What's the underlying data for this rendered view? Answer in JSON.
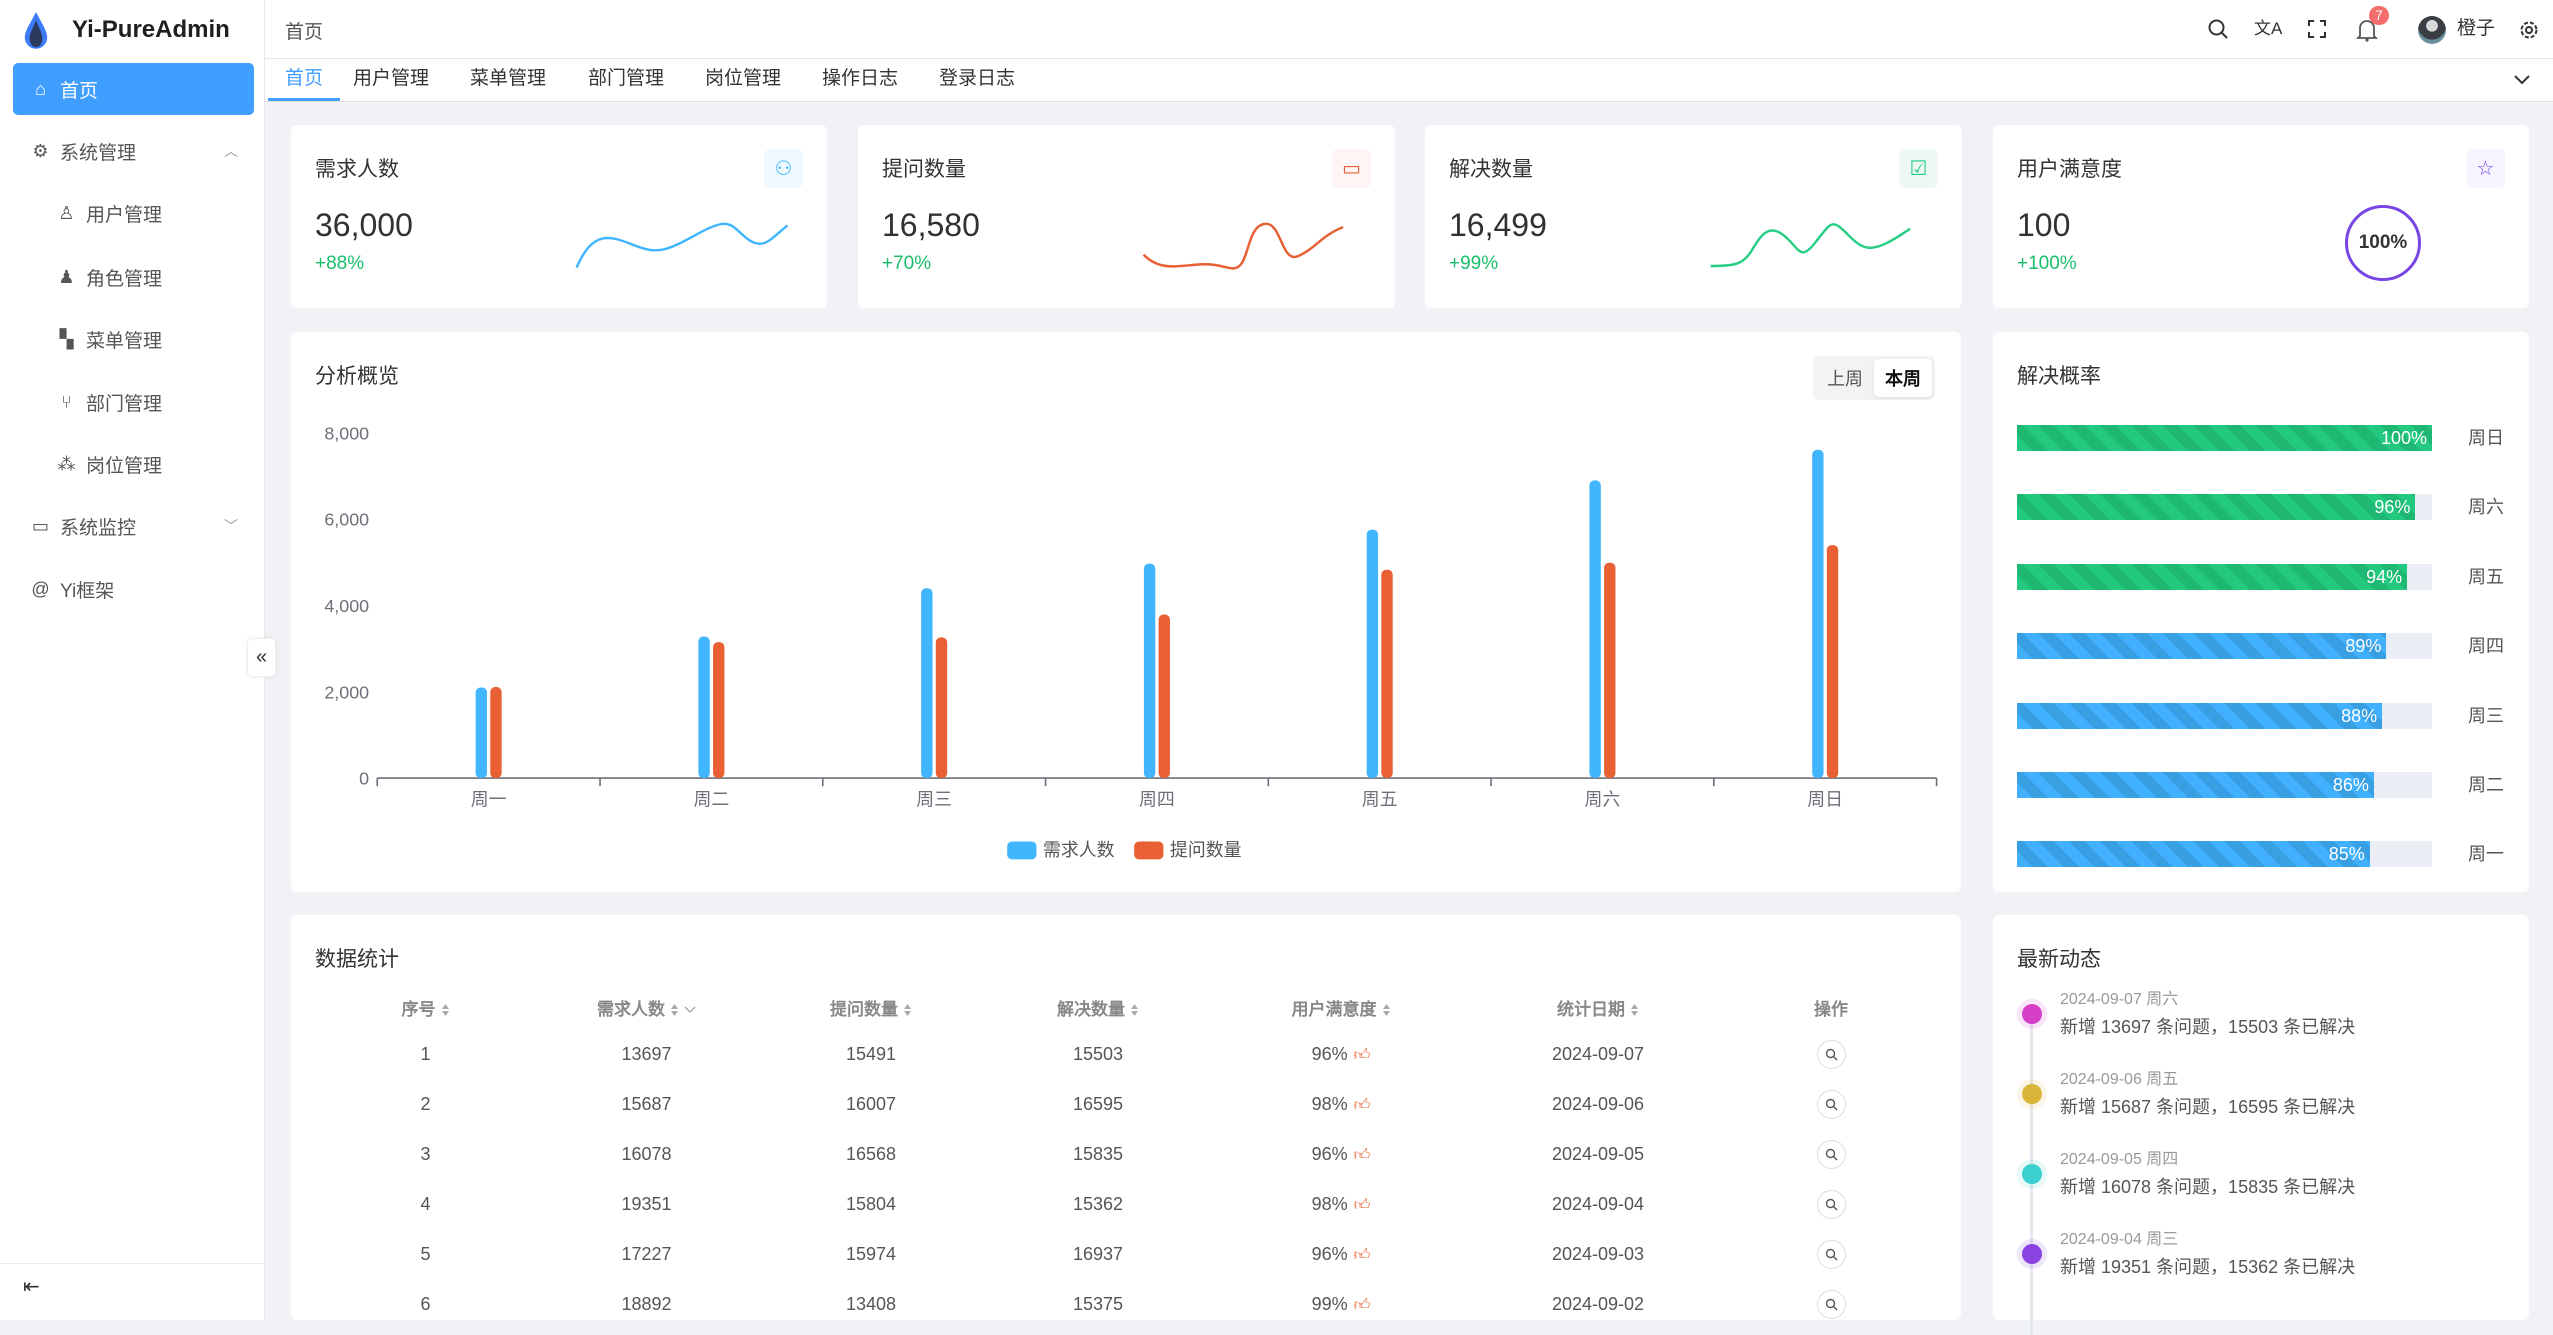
{
  "app": {
    "title": "Yi-PureAdmin"
  },
  "sidebar": {
    "items": [
      {
        "label": "首页",
        "icon": "home-icon",
        "active": true
      },
      {
        "label": "系统管理",
        "icon": "gear-icon",
        "expanded": true
      },
      {
        "label": "用户管理",
        "icon": "user-icon"
      },
      {
        "label": "角色管理",
        "icon": "role-icon"
      },
      {
        "label": "菜单管理",
        "icon": "grid-icon"
      },
      {
        "label": "部门管理",
        "icon": "branch-icon"
      },
      {
        "label": "岗位管理",
        "icon": "nodes-icon"
      },
      {
        "label": "系统监控",
        "icon": "monitor-icon"
      },
      {
        "label": "Yi框架",
        "icon": "at-icon"
      }
    ]
  },
  "header": {
    "breadcrumb": "首页",
    "notification_count": "7",
    "username": "橙子"
  },
  "tabs": [
    "首页",
    "用户管理",
    "菜单管理",
    "部门管理",
    "岗位管理",
    "操作日志",
    "登录日志"
  ],
  "stats": [
    {
      "title": "需求人数",
      "value": "36,000",
      "change": "+88%",
      "color": "#41b6ff",
      "icon": "users-icon"
    },
    {
      "title": "提问数量",
      "value": "16,580",
      "change": "+70%",
      "color": "#e85f33",
      "icon": "chat-icon"
    },
    {
      "title": "解决数量",
      "value": "16,499",
      "change": "+99%",
      "color": "#26ce83",
      "icon": "check-chat-icon"
    },
    {
      "title": "用户满意度",
      "value": "100",
      "change": "+100%",
      "color": "#7846e5",
      "icon": "star-icon",
      "ring": "100%"
    }
  ],
  "overview": {
    "title": "分析概览",
    "toggle": [
      "上周",
      "本周"
    ],
    "selected": "本周"
  },
  "chart_data": {
    "type": "bar",
    "categories": [
      "周一",
      "周二",
      "周三",
      "周四",
      "周五",
      "周六",
      "周日"
    ],
    "series": [
      {
        "name": "需求人数",
        "color": "#41b6ff",
        "values": [
          2100,
          3280,
          4400,
          4970,
          5760,
          6900,
          7610
        ]
      },
      {
        "name": "提问数量",
        "color": "#e86033",
        "values": [
          2110,
          3150,
          3260,
          3790,
          4830,
          4990,
          5400
        ]
      }
    ],
    "ylim": [
      0,
      8000
    ],
    "yticks": [
      "0",
      "2,000",
      "4,000",
      "6,000",
      "8,000"
    ],
    "legend": "bottom"
  },
  "resolve": {
    "title": "解决概率",
    "rows": [
      {
        "day": "周日",
        "pct": 100,
        "label": "100%",
        "color": "green"
      },
      {
        "day": "周六",
        "pct": 96,
        "label": "96%",
        "color": "green"
      },
      {
        "day": "周五",
        "pct": 94,
        "label": "94%",
        "color": "green"
      },
      {
        "day": "周四",
        "pct": 89,
        "label": "89%",
        "color": "blue"
      },
      {
        "day": "周三",
        "pct": 88,
        "label": "88%",
        "color": "blue"
      },
      {
        "day": "周二",
        "pct": 86,
        "label": "86%",
        "color": "blue"
      },
      {
        "day": "周一",
        "pct": 85,
        "label": "85%",
        "color": "blue"
      }
    ]
  },
  "table": {
    "title": "数据统计",
    "columns": [
      "序号",
      "需求人数",
      "提问数量",
      "解决数量",
      "用户满意度",
      "统计日期",
      "操作"
    ],
    "rows": [
      [
        "1",
        "13697",
        "15491",
        "15503",
        "96%",
        "2024-09-07"
      ],
      [
        "2",
        "15687",
        "16007",
        "16595",
        "98%",
        "2024-09-06"
      ],
      [
        "3",
        "16078",
        "16568",
        "15835",
        "96%",
        "2024-09-05"
      ],
      [
        "4",
        "19351",
        "15804",
        "15362",
        "98%",
        "2024-09-04"
      ],
      [
        "5",
        "17227",
        "15974",
        "16937",
        "96%",
        "2024-09-03"
      ],
      [
        "6",
        "18892",
        "13408",
        "15375",
        "99%",
        "2024-09-02"
      ]
    ]
  },
  "timeline": {
    "title": "最新动态",
    "items": [
      {
        "date": "2024-09-07 周六",
        "text": "新增 13697 条问题，15503 条已解决",
        "color": "#d63fc8"
      },
      {
        "date": "2024-09-06 周五",
        "text": "新增 15687 条问题，16595 条已解决",
        "color": "#d9b63a"
      },
      {
        "date": "2024-09-05 周四",
        "text": "新增 16078 条问题，15835 条已解决",
        "color": "#3ccfcf"
      },
      {
        "date": "2024-09-04 周三",
        "text": "新增 19351 条问题，15362 条已解决",
        "color": "#8a43e0"
      }
    ]
  }
}
